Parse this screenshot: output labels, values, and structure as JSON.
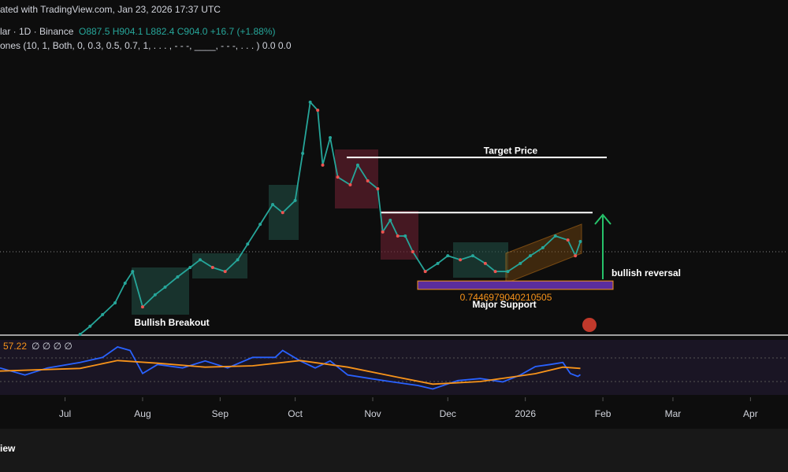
{
  "header": {
    "watermark": "ated with TradingView.com, Jan 23, 2026 17:37 UTC",
    "symbol": "lar · 1D · Binance",
    "ohlc": "O887.5 H904.1 L882.4 C904.0 +16.7 (+1.88%)",
    "indicator": "ones (10, 1, Both, 0, 0.3, 0.5, 0.7, 1, . . . , - - -, ____, - - -, . . . )  0.0  0.0",
    "footer": "iew"
  },
  "chart_data": [
    {
      "type": "line",
      "color": "#26a69a",
      "x": [
        6,
        10,
        15,
        20,
        24,
        27,
        31,
        36,
        40,
        45,
        50,
        54,
        59,
        64,
        69,
        73,
        78,
        83,
        87,
        92,
        95,
        98,
        101,
        103,
        106,
        109,
        114,
        117,
        121,
        125,
        127,
        130,
        133,
        136,
        139,
        144,
        149,
        153,
        158,
        163,
        168,
        172,
        177,
        182,
        186,
        191,
        196,
        201,
        204,
        206
      ],
      "values": [
        650,
        672,
        704,
        736,
        790,
        822,
        725,
        758,
        779,
        807,
        833,
        854,
        833,
        822,
        854,
        897,
        951,
        1005,
        983,
        1016,
        1145,
        1285,
        1263,
        1113,
        1188,
        1080,
        1059,
        1113,
        1070,
        1048,
        930,
        962,
        919,
        919,
        876,
        822,
        844,
        865,
        854,
        865,
        844,
        822,
        822,
        844,
        865,
        887,
        919,
        908,
        865,
        904
      ],
      "xlim": [
        -26,
        289
      ],
      "ylim": [
        650,
        1500
      ],
      "xticks": [
        {
          "value": 0,
          "label": "Jul"
        },
        {
          "value": 31,
          "label": "Aug"
        },
        {
          "value": 62,
          "label": "Sep"
        },
        {
          "value": 92,
          "label": "Oct"
        },
        {
          "value": 123,
          "label": "Nov"
        },
        {
          "value": 153,
          "label": "Dec"
        },
        {
          "value": 184,
          "label": "2026"
        },
        {
          "value": 215,
          "label": "Feb"
        },
        {
          "value": 243,
          "label": "Mar"
        },
        {
          "value": 274,
          "label": "Apr"
        }
      ],
      "levels": [
        {
          "label": "Target Price",
          "value": 1134
        },
        {
          "value": 983
        }
      ],
      "support": {
        "label": "Major Support",
        "range": [
          773,
          796
        ],
        "note": "0.7446979040210505"
      },
      "annotations": [
        "Bullish Breakout",
        "bullish reversal"
      ]
    },
    {
      "type": "line",
      "xlim": [
        -26,
        289
      ],
      "ylim": [
        40,
        85
      ],
      "flags": "∅ ∅ ∅ ∅",
      "series": [
        {
          "color": "#2962ff",
          "x": [
            -26,
            -16,
            -7,
            6,
            15,
            21,
            26,
            31,
            37,
            47,
            56,
            65,
            75,
            84,
            87,
            94,
            100,
            106,
            113,
            122,
            131,
            141,
            147,
            157,
            166,
            175,
            182,
            188,
            194,
            199,
            202,
            205,
            206
          ],
          "values": [
            62.4,
            57,
            62.4,
            66.6,
            70.4,
            78.4,
            75.7,
            58.1,
            65,
            62.4,
            67.7,
            62.4,
            70.4,
            70.4,
            75.7,
            67.7,
            62.4,
            67.7,
            57,
            54.3,
            51.7,
            49,
            46.3,
            52.7,
            54.3,
            51.7,
            57,
            63.4,
            65,
            66.6,
            58.1,
            55.9,
            57.22
          ]
        },
        {
          "color": "#f7931a",
          "x": [
            -26,
            6,
            21,
            37,
            56,
            75,
            94,
            113,
            131,
            147,
            166,
            188,
            199,
            206
          ],
          "values": [
            60,
            62,
            68,
            66,
            63,
            64,
            68,
            63,
            56,
            50,
            52,
            58,
            63,
            62
          ]
        }
      ]
    }
  ]
}
